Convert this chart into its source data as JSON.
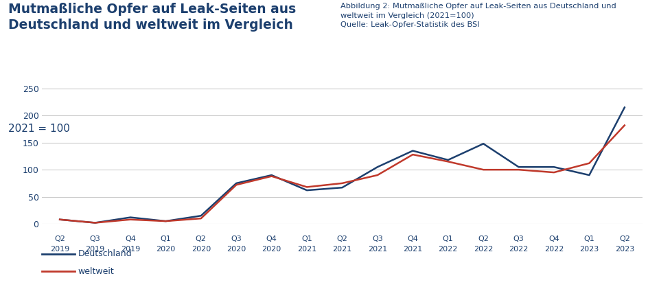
{
  "title_main": "Mutmaßliche Opfer auf Leak-Seiten aus\nDeutschland und weltweit im Vergleich",
  "subtitle": "2021 = 100",
  "caption_title": "Abbildung 2: Mutmaßliche Opfer auf Leak-Seiten aus Deutschland und\nweltweit im Vergleich (2021=100)\nQuelle: Leak-Opfer-Statistik des BSI",
  "x_labels_top": [
    "Q2",
    "Q3",
    "Q4",
    "Q1",
    "Q2",
    "Q3",
    "Q4",
    "Q1",
    "Q2",
    "Q3",
    "Q4",
    "Q1",
    "Q2",
    "Q3",
    "Q4",
    "Q1",
    "Q2"
  ],
  "x_labels_bot": [
    "2019",
    "2019",
    "2019",
    "2020",
    "2020",
    "2020",
    "2020",
    "2021",
    "2021",
    "2021",
    "2021",
    "2022",
    "2022",
    "2022",
    "2022",
    "2023",
    "2023"
  ],
  "deutschland": [
    8,
    2,
    12,
    5,
    15,
    75,
    90,
    62,
    67,
    105,
    135,
    118,
    148,
    105,
    105,
    90,
    215
  ],
  "weltweit": [
    8,
    2,
    8,
    5,
    10,
    72,
    88,
    68,
    75,
    90,
    128,
    115,
    100,
    100,
    95,
    112,
    182
  ],
  "color_deutschland": "#1c3f6e",
  "color_weltweit": "#c0392b",
  "ylim": [
    0,
    265
  ],
  "yticks": [
    0,
    50,
    100,
    150,
    200,
    250
  ],
  "legend_deutschland": "Deutschland",
  "legend_weltweit": "weltweit",
  "title_color": "#1c3f6e",
  "caption_color": "#1c3f6e",
  "grid_color": "#cccccc",
  "bg_color": "#ffffff"
}
